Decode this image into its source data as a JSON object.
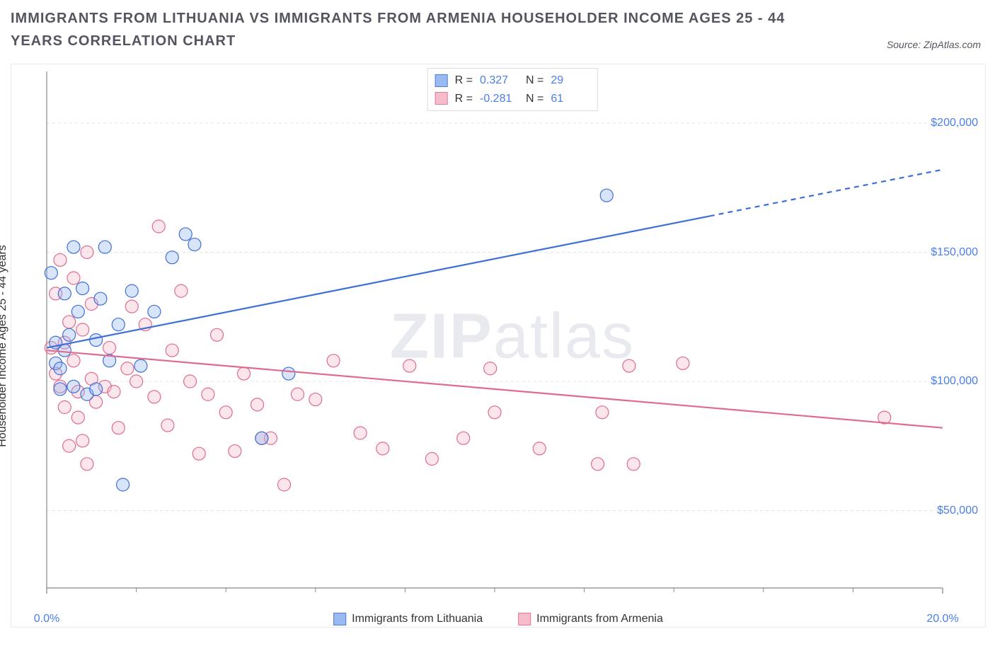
{
  "title": "IMMIGRANTS FROM LITHUANIA VS IMMIGRANTS FROM ARMENIA HOUSEHOLDER INCOME AGES 25 - 44 YEARS CORRELATION CHART",
  "source": "Source: ZipAtlas.com",
  "watermark_bold": "ZIP",
  "watermark_light": "atlas",
  "chart": {
    "type": "scatter",
    "xlim": [
      0,
      20
    ],
    "ylim": [
      20000,
      220000
    ],
    "x_ticks": [
      0,
      20
    ],
    "x_tick_labels": [
      "0.0%",
      "20.0%"
    ],
    "y_ticks": [
      50000,
      100000,
      150000,
      200000
    ],
    "y_tick_labels": [
      "$50,000",
      "$100,000",
      "$150,000",
      "$200,000"
    ],
    "y_axis_label": "Householder Income Ages 25 - 44 years",
    "minor_x_ticks": [
      2,
      4,
      6,
      8,
      10,
      12,
      14,
      16,
      18
    ],
    "background_color": "#ffffff",
    "grid_color": "#e4e4e4",
    "grid_dash": "4,4",
    "axis_color": "#888888",
    "marker_radius": 9,
    "marker_stroke_width": 1.2,
    "marker_fill_opacity": 0.35,
    "line_width": 2.2,
    "series": [
      {
        "id": "lithuania",
        "label": "Immigrants from Lithuania",
        "color_stroke": "#3f6fd6",
        "color_fill": "#8fb3f2",
        "r_value": "0.327",
        "n_value": "29",
        "trend": {
          "x1": 0,
          "y1": 113000,
          "x2": 14.8,
          "y2": 164000
        },
        "trend_extrap": {
          "x1": 14.8,
          "y1": 164000,
          "x2": 20,
          "y2": 182000
        },
        "points": [
          [
            0.1,
            142000
          ],
          [
            0.2,
            107000
          ],
          [
            0.2,
            115000
          ],
          [
            0.3,
            97000
          ],
          [
            0.3,
            105000
          ],
          [
            0.4,
            112000
          ],
          [
            0.4,
            134000
          ],
          [
            0.5,
            118000
          ],
          [
            0.6,
            98000
          ],
          [
            0.6,
            152000
          ],
          [
            0.7,
            127000
          ],
          [
            0.8,
            136000
          ],
          [
            0.9,
            95000
          ],
          [
            1.1,
            116000
          ],
          [
            1.1,
            97000
          ],
          [
            1.2,
            132000
          ],
          [
            1.3,
            152000
          ],
          [
            1.4,
            108000
          ],
          [
            1.6,
            122000
          ],
          [
            1.7,
            60000
          ],
          [
            1.9,
            135000
          ],
          [
            2.1,
            106000
          ],
          [
            2.4,
            127000
          ],
          [
            2.8,
            148000
          ],
          [
            3.1,
            157000
          ],
          [
            3.3,
            153000
          ],
          [
            4.8,
            78000
          ],
          [
            5.4,
            103000
          ],
          [
            12.5,
            172000
          ]
        ]
      },
      {
        "id": "armenia",
        "label": "Immigrants from Armenia",
        "color_stroke": "#e06b8e",
        "color_fill": "#f4b6c7",
        "r_value": "-0.281",
        "n_value": "61",
        "trend": {
          "x1": 0,
          "y1": 112000,
          "x2": 20,
          "y2": 82000
        },
        "trend_extrap": null,
        "points": [
          [
            0.1,
            113000
          ],
          [
            0.2,
            134000
          ],
          [
            0.2,
            103000
          ],
          [
            0.3,
            98000
          ],
          [
            0.3,
            147000
          ],
          [
            0.4,
            115000
          ],
          [
            0.4,
            90000
          ],
          [
            0.5,
            75000
          ],
          [
            0.5,
            123000
          ],
          [
            0.6,
            140000
          ],
          [
            0.6,
            108000
          ],
          [
            0.7,
            96000
          ],
          [
            0.7,
            86000
          ],
          [
            0.8,
            77000
          ],
          [
            0.8,
            120000
          ],
          [
            0.9,
            68000
          ],
          [
            0.9,
            150000
          ],
          [
            1.0,
            130000
          ],
          [
            1.0,
            101000
          ],
          [
            1.1,
            92000
          ],
          [
            1.3,
            98000
          ],
          [
            1.4,
            113000
          ],
          [
            1.5,
            96000
          ],
          [
            1.6,
            82000
          ],
          [
            1.8,
            105000
          ],
          [
            1.9,
            129000
          ],
          [
            2.0,
            100000
          ],
          [
            2.2,
            122000
          ],
          [
            2.4,
            94000
          ],
          [
            2.5,
            160000
          ],
          [
            2.7,
            83000
          ],
          [
            2.8,
            112000
          ],
          [
            3.0,
            135000
          ],
          [
            3.2,
            100000
          ],
          [
            3.4,
            72000
          ],
          [
            3.6,
            95000
          ],
          [
            3.8,
            118000
          ],
          [
            4.0,
            88000
          ],
          [
            4.2,
            73000
          ],
          [
            4.4,
            103000
          ],
          [
            4.7,
            91000
          ],
          [
            5.0,
            78000
          ],
          [
            5.3,
            60000
          ],
          [
            5.6,
            95000
          ],
          [
            6.0,
            93000
          ],
          [
            6.4,
            108000
          ],
          [
            7.0,
            80000
          ],
          [
            7.5,
            74000
          ],
          [
            8.1,
            106000
          ],
          [
            8.6,
            70000
          ],
          [
            9.3,
            78000
          ],
          [
            9.9,
            105000
          ],
          [
            10.0,
            88000
          ],
          [
            11.0,
            74000
          ],
          [
            12.3,
            68000
          ],
          [
            12.4,
            88000
          ],
          [
            13.0,
            106000
          ],
          [
            13.1,
            68000
          ],
          [
            14.2,
            107000
          ],
          [
            18.7,
            86000
          ],
          [
            4.8,
            78000
          ]
        ]
      }
    ],
    "legend_top": {
      "r_label": "R =",
      "n_label": "N ="
    },
    "legend_bottom": [
      {
        "ref": "lithuania"
      },
      {
        "ref": "armenia"
      }
    ]
  }
}
